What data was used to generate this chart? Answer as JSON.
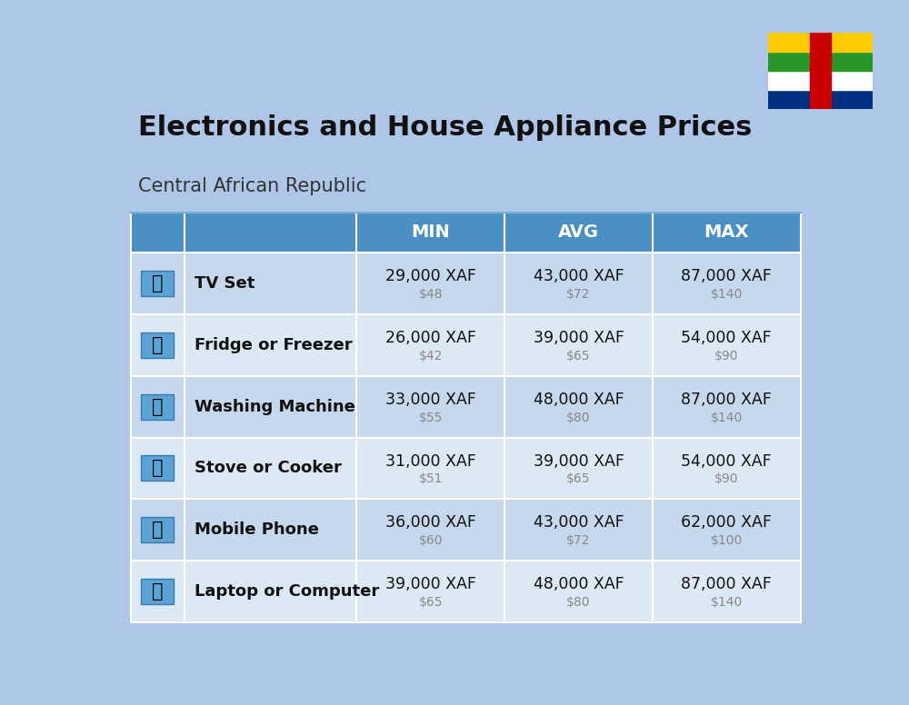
{
  "title": "Electronics and House Appliance Prices",
  "subtitle": "Central African Republic",
  "bg_color": "#aec6e8",
  "header_bg": "#4a90c4",
  "header_text_color": "#ffffff",
  "row_bg_light": "#c5d8ee",
  "row_bg_white": "#dce9f5",
  "cell_border_color": "#7aafd4",
  "columns": [
    "MIN",
    "AVG",
    "MAX"
  ],
  "items": [
    {
      "name": "TV Set",
      "min_xaf": "29,000 XAF",
      "min_usd": "$48",
      "avg_xaf": "43,000 XAF",
      "avg_usd": "$72",
      "max_xaf": "87,000 XAF",
      "max_usd": "$140"
    },
    {
      "name": "Fridge or Freezer",
      "min_xaf": "26,000 XAF",
      "min_usd": "$42",
      "avg_xaf": "39,000 XAF",
      "avg_usd": "$65",
      "max_xaf": "54,000 XAF",
      "max_usd": "$90"
    },
    {
      "name": "Washing Machine",
      "min_xaf": "33,000 XAF",
      "min_usd": "$55",
      "avg_xaf": "48,000 XAF",
      "avg_usd": "$80",
      "max_xaf": "87,000 XAF",
      "max_usd": "$140"
    },
    {
      "name": "Stove or Cooker",
      "min_xaf": "31,000 XAF",
      "min_usd": "$51",
      "avg_xaf": "39,000 XAF",
      "avg_usd": "$65",
      "max_xaf": "54,000 XAF",
      "max_usd": "$90"
    },
    {
      "name": "Mobile Phone",
      "min_xaf": "36,000 XAF",
      "min_usd": "$60",
      "avg_xaf": "43,000 XAF",
      "avg_usd": "$72",
      "max_xaf": "62,000 XAF",
      "max_usd": "$100"
    },
    {
      "name": "Laptop or Computer",
      "min_xaf": "39,000 XAF",
      "min_usd": "$65",
      "avg_xaf": "48,000 XAF",
      "avg_usd": "$80",
      "max_xaf": "87,000 XAF",
      "max_usd": "$140"
    }
  ],
  "flag_stripes": [
    "#003082",
    "#FFFFFF",
    "#289728",
    "#FFCB00"
  ],
  "flag_red": "#CC0000",
  "flag_star": "#FFCB00"
}
